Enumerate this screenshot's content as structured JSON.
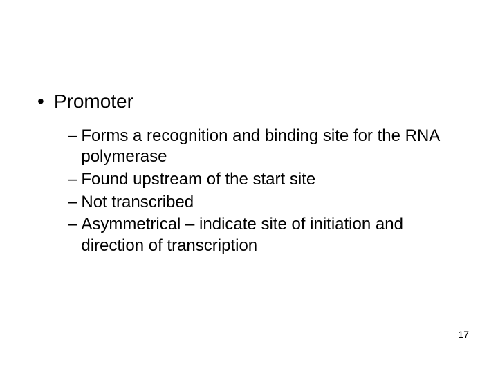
{
  "main": {
    "bullet_char": "•",
    "title": "Promoter",
    "dash_char": "–",
    "items": [
      "Forms a recognition and binding site for the RNA polymerase",
      "Found upstream of the start site",
      "Not transcribed",
      "Asymmetrical – indicate site of initiation and direction of transcription"
    ]
  },
  "page_number": "17",
  "colors": {
    "background": "#ffffff",
    "text": "#000000"
  },
  "typography": {
    "main_fontsize": 28,
    "sub_fontsize": 24,
    "pagenum_fontsize": 14,
    "font_family": "Arial"
  }
}
